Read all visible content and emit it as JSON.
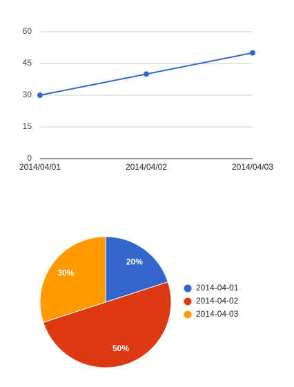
{
  "chart_data": [
    {
      "type": "line",
      "categories": [
        "2014/04/01",
        "2014/04/02",
        "2014/04/03"
      ],
      "values": [
        30,
        40,
        50
      ],
      "color": "#3366cc",
      "ylim": [
        0,
        60
      ],
      "yticks": [
        0,
        15,
        30,
        45,
        60
      ],
      "grid": true
    },
    {
      "type": "pie",
      "categories": [
        "2014-04-01",
        "2014-04-02",
        "2014-04-03"
      ],
      "values": [
        20,
        50,
        30
      ],
      "value_labels": [
        "20%",
        "50%",
        "30%"
      ],
      "colors": [
        "#3366cc",
        "#dc3912",
        "#ff9900"
      ],
      "legend": "right"
    }
  ]
}
